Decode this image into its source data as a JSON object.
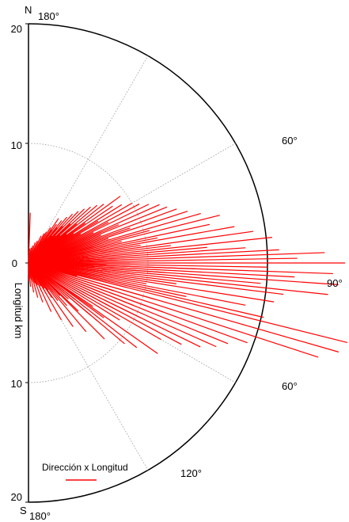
{
  "chart_data": {
    "type": "polar-rose (half circle)",
    "title": "",
    "ylabel": "Longitud km",
    "radial_range": [
      0,
      20
    ],
    "radial_ticks": [
      {
        "label": "20",
        "r": 20,
        "side": "N"
      },
      {
        "label": "10",
        "r": 10,
        "side": "N"
      },
      {
        "label": "0",
        "r": 0,
        "side": "C"
      },
      {
        "label": "10",
        "r": 10,
        "side": "S"
      },
      {
        "label": "20",
        "r": 20,
        "side": "S"
      }
    ],
    "compass": {
      "north": "N",
      "south": "S"
    },
    "angle_labels": [
      {
        "label": "180°",
        "where": "top"
      },
      {
        "label": "60°",
        "where": "upper"
      },
      {
        "label": "90°",
        "where": "east"
      },
      {
        "label": "60°",
        "where": "lower"
      },
      {
        "label": "120°",
        "where": "lower-mid"
      },
      {
        "label": "180°",
        "where": "bottom"
      }
    ],
    "legend": {
      "label": "Dirección x Longitud",
      "color": "#ff0000",
      "placement": "bottom-left"
    },
    "series_color": "#ff0000",
    "grid": {
      "circles": [
        10
      ],
      "spokes_deg_from_north": [
        30,
        60,
        120,
        150
      ]
    },
    "series": [
      {
        "values_azimuth_deg_length_km": [
          [
            90,
            26.5
          ],
          [
            88,
            24.8
          ],
          [
            92,
            25.5
          ],
          [
            94,
            26.0
          ],
          [
            96,
            25.2
          ],
          [
            104,
            27.5
          ],
          [
            106,
            27.0
          ],
          [
            108,
            25.5
          ],
          [
            82,
            19.0
          ],
          [
            84,
            20.5
          ],
          [
            86,
            18.2
          ],
          [
            87,
            21.0
          ],
          [
            89,
            22.5
          ],
          [
            91,
            20.0
          ],
          [
            93,
            22.3
          ],
          [
            95,
            19.5
          ],
          [
            97,
            21.5
          ],
          [
            99,
            20.8
          ],
          [
            101,
            18.5
          ],
          [
            103,
            20.2
          ],
          [
            110,
            19.5
          ],
          [
            112,
            18.0
          ],
          [
            114,
            17.2
          ],
          [
            116,
            16.0
          ],
          [
            118,
            14.5
          ],
          [
            120,
            12.8
          ],
          [
            125,
            13.2
          ],
          [
            128,
            11.5
          ],
          [
            130,
            10.5
          ],
          [
            135,
            9.0
          ],
          [
            140,
            7.5
          ],
          [
            145,
            6.5
          ],
          [
            150,
            5.5
          ],
          [
            155,
            4.5
          ],
          [
            160,
            3.5
          ],
          [
            165,
            3.0
          ],
          [
            170,
            2.5
          ],
          [
            175,
            2.0
          ],
          [
            179,
            1.5
          ],
          [
            80,
            17.5
          ],
          [
            78,
            15.5
          ],
          [
            76,
            16.5
          ],
          [
            74,
            15.0
          ],
          [
            72,
            14.0
          ],
          [
            70,
            13.2
          ],
          [
            68,
            12.5
          ],
          [
            66,
            12.0
          ],
          [
            64,
            11.2
          ],
          [
            62,
            10.5
          ],
          [
            60,
            10.0
          ],
          [
            58,
            9.2
          ],
          [
            56,
            8.5
          ],
          [
            54,
            9.5
          ],
          [
            52,
            8.0
          ],
          [
            50,
            7.5
          ],
          [
            48,
            7.0
          ],
          [
            46,
            6.5
          ],
          [
            44,
            6.0
          ],
          [
            42,
            5.5
          ],
          [
            40,
            5.0
          ],
          [
            38,
            4.5
          ],
          [
            36,
            4.0
          ],
          [
            34,
            4.5
          ],
          [
            32,
            3.5
          ],
          [
            30,
            3.0
          ],
          [
            28,
            2.8
          ],
          [
            25,
            2.5
          ],
          [
            22,
            2.0
          ],
          [
            18,
            1.8
          ],
          [
            14,
            1.5
          ],
          [
            10,
            1.3
          ],
          [
            5,
            1.2
          ],
          [
            2,
            4.2
          ],
          [
            85,
            15.0
          ],
          [
            83,
            12.0
          ],
          [
            81,
            9.5
          ],
          [
            79,
            11.0
          ],
          [
            77,
            8.0
          ],
          [
            75,
            10.5
          ],
          [
            73,
            7.0
          ],
          [
            71,
            9.0
          ],
          [
            69,
            6.5
          ],
          [
            67,
            8.2
          ],
          [
            65,
            6.0
          ],
          [
            63,
            7.5
          ],
          [
            61,
            5.0
          ],
          [
            59,
            6.8
          ],
          [
            57,
            4.5
          ],
          [
            55,
            5.8
          ],
          [
            53,
            4.0
          ],
          [
            51,
            5.2
          ],
          [
            49,
            3.5
          ],
          [
            47,
            4.8
          ],
          [
            45,
            3.2
          ],
          [
            43,
            4.2
          ],
          [
            41,
            3.0
          ],
          [
            39,
            3.8
          ],
          [
            37,
            2.6
          ],
          [
            35,
            3.4
          ],
          [
            92,
            14.0
          ],
          [
            94,
            11.5
          ],
          [
            96,
            9.0
          ],
          [
            98,
            12.5
          ],
          [
            100,
            10.0
          ],
          [
            102,
            13.5
          ],
          [
            104,
            8.5
          ],
          [
            106,
            11.0
          ],
          [
            108,
            7.5
          ],
          [
            110,
            12.0
          ],
          [
            112,
            9.5
          ],
          [
            114,
            6.5
          ],
          [
            116,
            10.5
          ],
          [
            118,
            8.0
          ],
          [
            120,
            5.5
          ],
          [
            122,
            9.0
          ],
          [
            124,
            6.5
          ],
          [
            126,
            7.8
          ],
          [
            128,
            5.0
          ],
          [
            130,
            6.8
          ],
          [
            132,
            4.5
          ],
          [
            134,
            5.8
          ],
          [
            136,
            3.8
          ],
          [
            138,
            4.8
          ],
          [
            140,
            3.2
          ],
          [
            142,
            4.0
          ],
          [
            144,
            2.8
          ],
          [
            146,
            3.5
          ],
          [
            148,
            2.5
          ],
          [
            150,
            3.0
          ],
          [
            152,
            2.2
          ],
          [
            155,
            2.6
          ],
          [
            158,
            2.0
          ],
          [
            162,
            1.8
          ],
          [
            166,
            1.6
          ],
          [
            170,
            1.4
          ],
          [
            174,
            1.3
          ],
          [
            178,
            1.2
          ],
          [
            88,
            7.5
          ],
          [
            86,
            6.0
          ],
          [
            84,
            5.0
          ],
          [
            90,
            8.5
          ],
          [
            91,
            6.5
          ],
          [
            89,
            4.5
          ],
          [
            87,
            3.5
          ],
          [
            93,
            5.5
          ],
          [
            95,
            4.0
          ],
          [
            97,
            6.2
          ],
          [
            99,
            3.2
          ],
          [
            101,
            5.0
          ],
          [
            103,
            2.8
          ],
          [
            105,
            4.2
          ],
          [
            80,
            4.8
          ],
          [
            78,
            3.6
          ],
          [
            76,
            5.6
          ],
          [
            74,
            2.9
          ],
          [
            72,
            4.1
          ],
          [
            70,
            2.4
          ],
          [
            68,
            3.3
          ]
        ]
      }
    ]
  }
}
